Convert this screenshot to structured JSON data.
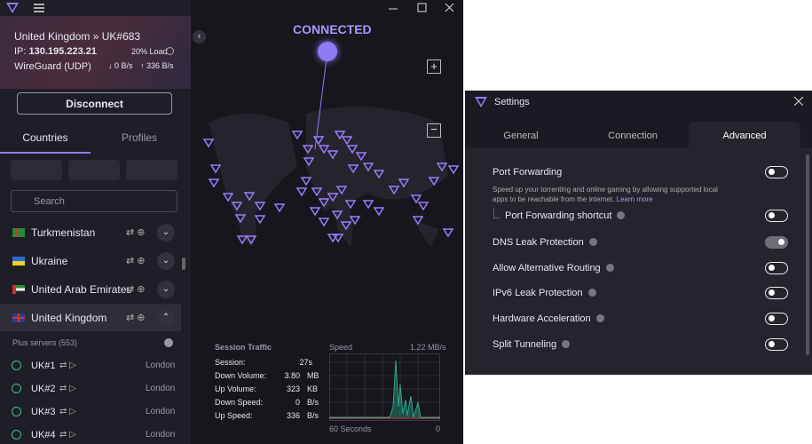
{
  "app": {
    "status": "CONNECTED",
    "location": "United Kingdom » UK#683",
    "ip_label": "IP:",
    "ip": "130.195.223.21",
    "load": "20% Load",
    "protocol": "WireGuard (UDP)",
    "down": "0 B/s",
    "up": "336 B/s",
    "disconnect": "Disconnect",
    "tabs": [
      "Countries",
      "Profiles"
    ],
    "search": "Search",
    "countries": [
      "Turkmenistan",
      "Ukraine",
      "United Arab Emirates",
      "United Kingdom"
    ],
    "plus_servers": "Plus servers (553)",
    "servers": [
      {
        "name": "UK#1",
        "city": "London"
      },
      {
        "name": "UK#2",
        "city": "London"
      },
      {
        "name": "UK#3",
        "city": "London"
      },
      {
        "name": "UK#4",
        "city": "London"
      }
    ],
    "traffic": {
      "title": "Session Traffic",
      "rows": [
        {
          "label": "Session:",
          "value": "27s"
        },
        {
          "label": "Down Volume:",
          "value": "3.80",
          "unit": "MB"
        },
        {
          "label": "Up Volume:",
          "value": "323",
          "unit": "KB"
        },
        {
          "label": "Down Speed:",
          "value": "0",
          "unit": "B/s"
        },
        {
          "label": "Up Speed:",
          "value": "336",
          "unit": "B/s"
        }
      ],
      "speed_label": "Speed",
      "speed_max": "1.22 MB/s",
      "x_start": "60 Seconds",
      "x_end": "0"
    }
  },
  "settings": {
    "title": "Settings",
    "tabs": [
      "General",
      "Connection",
      "Advanced"
    ],
    "active_tab": 2,
    "options": [
      {
        "label": "Port Forwarding",
        "on": false,
        "description": "Speed up your torrenting and online gaming by allowing supported local apps to be reachable from the internet.",
        "link": "Learn more"
      },
      {
        "label": "Port Forwarding shortcut",
        "on": false
      },
      {
        "label": "DNS Leak Protection",
        "on": true
      },
      {
        "label": "Allow Alternative Routing",
        "on": false
      },
      {
        "label": "IPv6 Leak Protection",
        "on": false
      },
      {
        "label": "Hardware Acceleration",
        "on": false
      },
      {
        "label": "Split Tunneling",
        "on": false
      }
    ]
  }
}
